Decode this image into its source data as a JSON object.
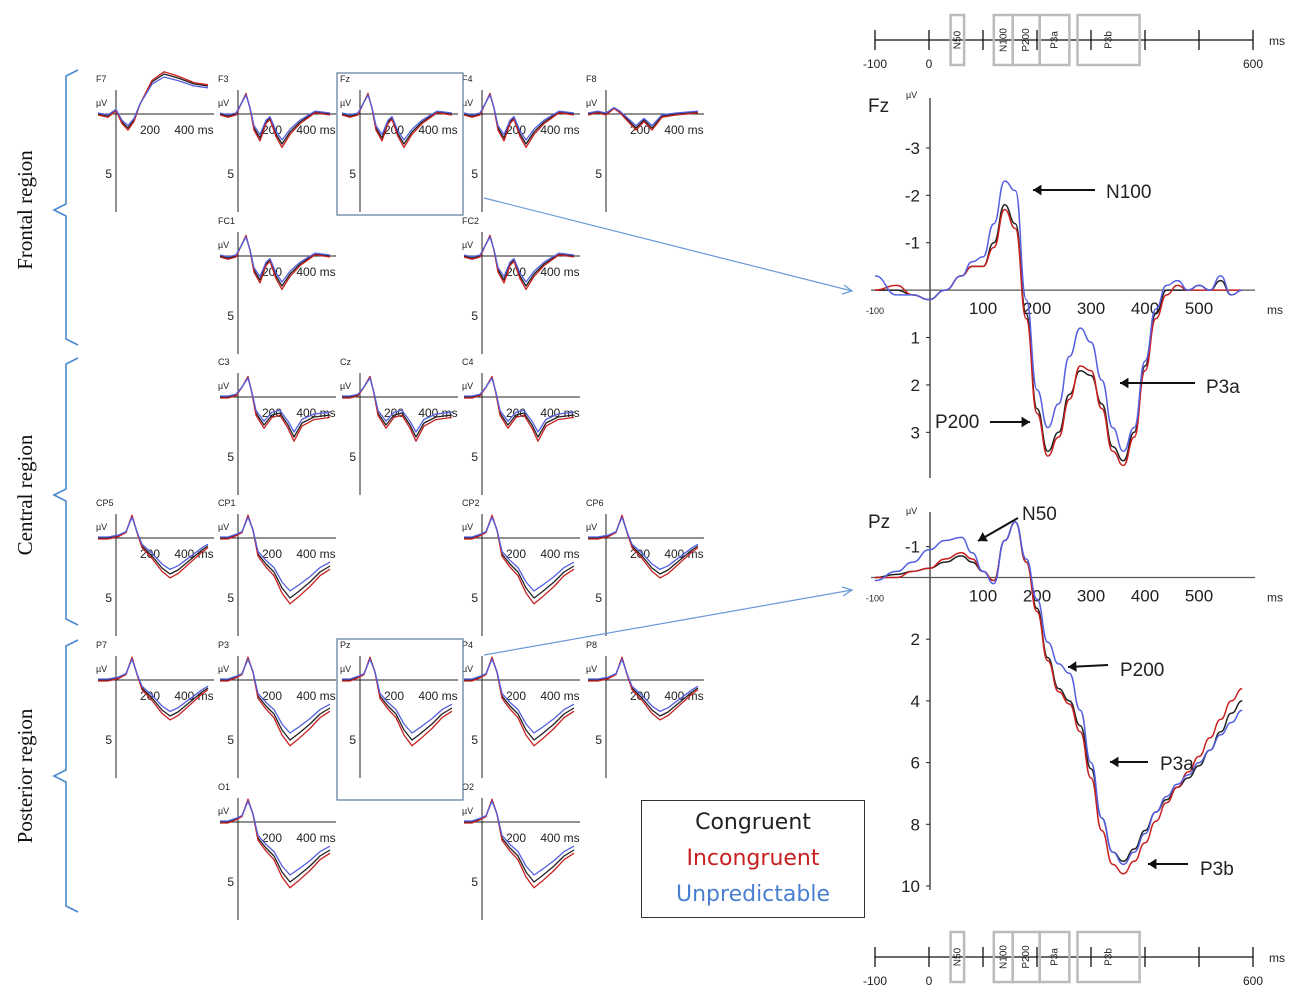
{
  "chart_data": {
    "type": "line",
    "colors": {
      "congruent": "#222222",
      "incongruent": "#c82020",
      "unpredictable": "#5560e0"
    },
    "legend": {
      "items": [
        "Congruent",
        "Incongruent",
        "Unpredictable"
      ],
      "placement": "bottom-center"
    },
    "regions": [
      "Frontal region",
      "Central region",
      "Posterior region"
    ],
    "small_panels": {
      "unit": "µV",
      "x_ticks": [
        "200",
        "400 ms"
      ],
      "y_tick": "5",
      "items": [
        {
          "label": "F7",
          "shape": "f7"
        },
        {
          "label": "F3",
          "shape": "front"
        },
        {
          "label": "Fz",
          "shape": "front"
        },
        {
          "label": "F4",
          "shape": "front"
        },
        {
          "label": "F8",
          "shape": "f8"
        },
        {
          "label": "FC1",
          "shape": "front"
        },
        {
          "label": "FC2",
          "shape": "front"
        },
        {
          "label": "C3",
          "shape": "cent"
        },
        {
          "label": "Cz",
          "shape": "cent"
        },
        {
          "label": "C4",
          "shape": "cent"
        },
        {
          "label": "CP5",
          "shape": "cp"
        },
        {
          "label": "CP1",
          "shape": "post"
        },
        {
          "label": "CP2",
          "shape": "post"
        },
        {
          "label": "CP6",
          "shape": "cp"
        },
        {
          "label": "P7",
          "shape": "cp"
        },
        {
          "label": "P3",
          "shape": "post"
        },
        {
          "label": "Pz",
          "shape": "post"
        },
        {
          "label": "P4",
          "shape": "post"
        },
        {
          "label": "P8",
          "shape": "cp"
        },
        {
          "label": "O1",
          "shape": "post"
        },
        {
          "label": "O2",
          "shape": "post"
        }
      ]
    },
    "fz_panel": {
      "title": "Fz",
      "unit": "µV",
      "x_unit": "ms",
      "x_ticks": [
        -100,
        100,
        200,
        300,
        400,
        500
      ],
      "y_ticks": [
        -3,
        -2,
        -1,
        1,
        2,
        3
      ],
      "xlim": [
        -100,
        600
      ],
      "ylim": [
        -3.8,
        3.9
      ],
      "annotations": [
        "N100",
        "P3a",
        "P200"
      ],
      "series": [
        {
          "name": "Congruent",
          "x": [
            -100,
            -60,
            -30,
            0,
            30,
            60,
            80,
            100,
            120,
            140,
            160,
            180,
            200,
            220,
            240,
            260,
            280,
            300,
            320,
            340,
            360,
            380,
            400,
            420,
            440,
            460,
            480,
            500,
            520,
            540,
            560,
            580
          ],
          "y": [
            0,
            0,
            0.1,
            0.2,
            0,
            -0.3,
            -0.5,
            -0.5,
            -1.0,
            -1.8,
            -1.4,
            0.5,
            2.5,
            3.4,
            3.0,
            2.2,
            1.7,
            1.8,
            2.4,
            3.3,
            3.6,
            3.0,
            1.6,
            0.5,
            0,
            0,
            0,
            -0.1,
            0,
            -0.2,
            0.1,
            0
          ]
        },
        {
          "name": "Incongruent",
          "x": [
            -100,
            -60,
            -30,
            0,
            30,
            60,
            80,
            100,
            120,
            140,
            160,
            180,
            200,
            220,
            240,
            260,
            280,
            300,
            320,
            340,
            360,
            380,
            400,
            420,
            440,
            460,
            480,
            500,
            520,
            540,
            560,
            580
          ],
          "y": [
            0,
            -0.1,
            0.1,
            0.2,
            0,
            -0.3,
            -0.5,
            -0.5,
            -0.9,
            -1.7,
            -1.3,
            0.6,
            2.6,
            3.5,
            3.1,
            2.3,
            1.6,
            1.7,
            2.5,
            3.4,
            3.7,
            3.1,
            1.7,
            0.6,
            0.1,
            -0.1,
            0,
            0,
            0,
            0,
            0,
            0
          ]
        },
        {
          "name": "Unpredictable",
          "x": [
            -100,
            -60,
            -30,
            0,
            30,
            60,
            80,
            100,
            120,
            140,
            160,
            180,
            200,
            220,
            240,
            260,
            280,
            300,
            320,
            340,
            360,
            380,
            400,
            420,
            440,
            460,
            480,
            500,
            520,
            540,
            560,
            580
          ],
          "y": [
            -0.3,
            0.1,
            0.1,
            0.2,
            0,
            -0.3,
            -0.6,
            -0.7,
            -1.4,
            -2.3,
            -2.1,
            0.2,
            2.1,
            2.9,
            2.4,
            1.4,
            0.8,
            1.1,
            1.9,
            2.9,
            3.4,
            2.9,
            1.5,
            0.4,
            -0.1,
            -0.2,
            0,
            -0.1,
            0,
            -0.3,
            0.1,
            0
          ]
        }
      ]
    },
    "pz_panel": {
      "title": "Pz",
      "unit": "µV",
      "x_unit": "ms",
      "x_ticks": [
        -100,
        100,
        200,
        300,
        400,
        500
      ],
      "y_ticks": [
        -1,
        2,
        4,
        6,
        8,
        10
      ],
      "xlim": [
        -100,
        600
      ],
      "ylim": [
        -1.8,
        10
      ],
      "annotations": [
        "N50",
        "P200",
        "P3a",
        "P3b"
      ],
      "series": [
        {
          "name": "Congruent",
          "x": [
            -100,
            -60,
            -30,
            0,
            30,
            60,
            80,
            100,
            120,
            140,
            160,
            180,
            200,
            220,
            240,
            260,
            280,
            300,
            320,
            340,
            360,
            380,
            400,
            420,
            440,
            460,
            480,
            500,
            520,
            540,
            560,
            580
          ],
          "y": [
            0,
            -0.1,
            -0.2,
            -0.3,
            -0.5,
            -0.7,
            -0.5,
            -0.2,
            0.1,
            -1.2,
            -1.8,
            -0.5,
            1.0,
            2.6,
            3.6,
            4.0,
            4.8,
            6.2,
            7.8,
            8.9,
            9.2,
            8.8,
            8.2,
            7.6,
            7.2,
            6.8,
            6.5,
            6.1,
            5.6,
            5.0,
            4.4,
            4.0
          ]
        },
        {
          "name": "Incongruent",
          "x": [
            -100,
            -60,
            -30,
            0,
            30,
            60,
            80,
            100,
            120,
            140,
            160,
            180,
            200,
            220,
            240,
            260,
            280,
            300,
            320,
            340,
            360,
            380,
            400,
            420,
            440,
            460,
            480,
            500,
            520,
            540,
            560,
            580
          ],
          "y": [
            0,
            0,
            -0.2,
            -0.3,
            -0.6,
            -0.8,
            -0.6,
            -0.2,
            0.1,
            -1.2,
            -1.8,
            -0.5,
            1.1,
            2.7,
            3.7,
            4.1,
            5.0,
            6.5,
            8.2,
            9.3,
            9.6,
            9.2,
            8.6,
            7.9,
            7.3,
            6.8,
            6.3,
            5.8,
            5.2,
            4.6,
            4.0,
            3.6
          ]
        },
        {
          "name": "Unpredictable",
          "x": [
            -100,
            -60,
            -30,
            0,
            30,
            60,
            80,
            100,
            120,
            140,
            160,
            180,
            200,
            220,
            240,
            260,
            280,
            300,
            320,
            340,
            360,
            380,
            400,
            420,
            440,
            460,
            480,
            500,
            520,
            540,
            560,
            580
          ],
          "y": [
            0.1,
            -0.2,
            -0.5,
            -0.9,
            -1.2,
            -1.3,
            -0.8,
            -0.2,
            0.2,
            -1.2,
            -1.8,
            -0.6,
            0.7,
            2.1,
            2.8,
            3.1,
            4.3,
            6.0,
            7.8,
            8.9,
            9.3,
            8.9,
            8.3,
            7.6,
            7.1,
            6.7,
            6.4,
            6.0,
            5.6,
            5.1,
            4.7,
            4.3
          ]
        }
      ]
    },
    "timeline": {
      "unit": "ms",
      "start_label": "-100",
      "zero_label": "0",
      "end_label": "600",
      "windows": [
        "N50",
        "N100",
        "P200",
        "P3a",
        "P3b"
      ]
    }
  }
}
